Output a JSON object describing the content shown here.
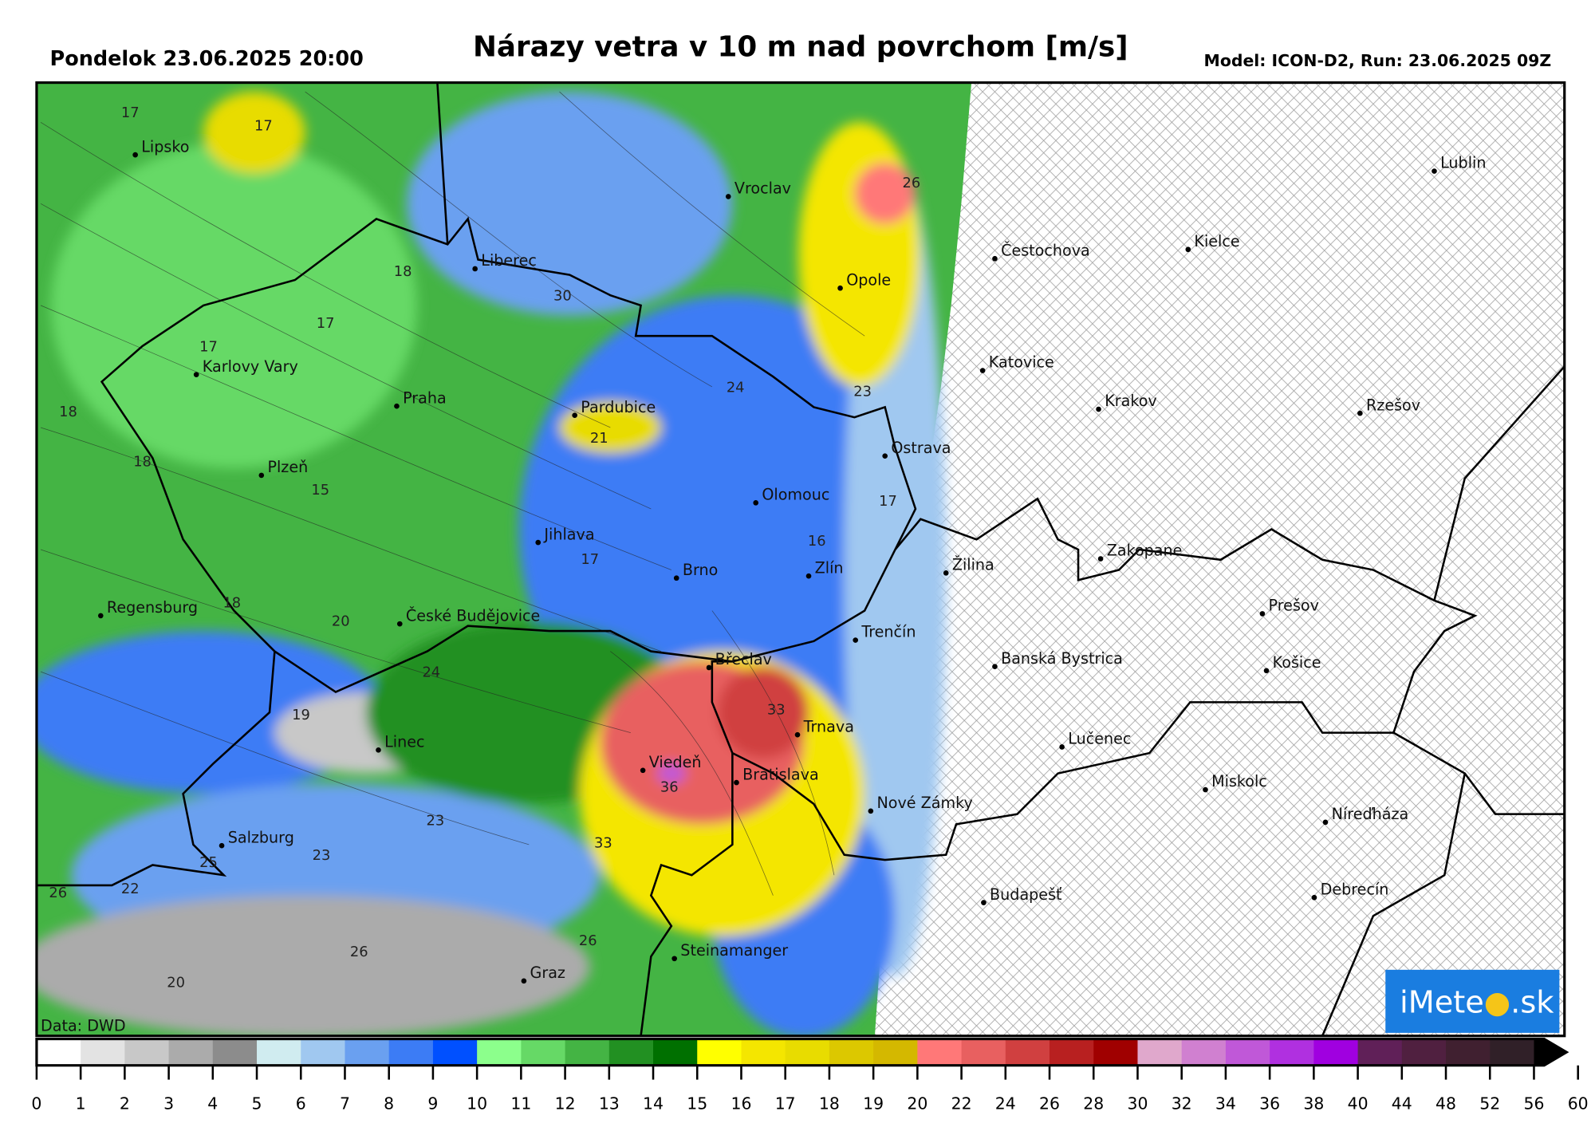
{
  "header": {
    "date_label": "Pondelok 23.06.2025 20:00",
    "title": "Nárazy vetra v 10 m nad povrchom [m/s]",
    "model_label": "Model: ICON-D2, Run: 23.06.2025 09Z"
  },
  "map": {
    "data_source": "Data: DWD",
    "logo_text": "iMeteo.sk",
    "logo_color": "#1a7de0",
    "no_data_pattern": "cross-hatch",
    "cities": [
      "Lipsko",
      "Vroclav",
      "Lublin",
      "Liberec",
      "Opole",
      "Čestochova",
      "Kielce",
      "Karlovy Vary",
      "Katovice",
      "Praha",
      "Pardubice",
      "Krakov",
      "Rzešov",
      "Ostrava",
      "Plzeň",
      "Olomouc",
      "Jihlava",
      "Zakopane",
      "Žilina",
      "Brno",
      "Zlín",
      "Regensburg",
      "České Budějovice",
      "Prešov",
      "Trenčín",
      "Břeclav",
      "Banská Bystrica",
      "Košice",
      "Trnava",
      "Linec",
      "Lučenec",
      "Viedeň",
      "Bratislava",
      "Miskolc",
      "Nové Zámky",
      "Níreďháza",
      "Salzburg",
      "Budapešť",
      "Debrecín",
      "Steinamanger",
      "Graz"
    ],
    "contour_labels": [
      "17",
      "17",
      "26",
      "18",
      "30",
      "17",
      "17",
      "24",
      "23",
      "18",
      "21",
      "18",
      "15",
      "17",
      "16",
      "17",
      "18",
      "20",
      "24",
      "19",
      "33",
      "36",
      "23",
      "23",
      "33",
      "25",
      "22",
      "26",
      "26",
      "26",
      "20"
    ]
  },
  "colorbar": {
    "unit": "m/s",
    "ticks": [
      "0",
      "1",
      "2",
      "3",
      "4",
      "5",
      "6",
      "7",
      "8",
      "9",
      "10",
      "11",
      "12",
      "13",
      "14",
      "15",
      "16",
      "17",
      "18",
      "19",
      "20",
      "22",
      "24",
      "26",
      "28",
      "30",
      "32",
      "34",
      "36",
      "38",
      "40",
      "44",
      "48",
      "52",
      "56",
      "60"
    ],
    "colors": [
      "#ffffff",
      "#e3e3e3",
      "#c8c8c8",
      "#ababab",
      "#8c8c8c",
      "#d0ecf0",
      "#a0c8f0",
      "#6aa0f0",
      "#3c7cf5",
      "#0050ff",
      "#8cff8c",
      "#66d966",
      "#44b444",
      "#229022",
      "#007000",
      "#ffff00",
      "#f4e600",
      "#e8dc00",
      "#dcc800",
      "#d4b800",
      "#ff7878",
      "#e86060",
      "#d04040",
      "#b82020",
      "#a00000",
      "#e0a8cc",
      "#d080d0",
      "#c058d8",
      "#b030e0",
      "#a000e0",
      "#602058",
      "#502040",
      "#402030",
      "#302028"
    ],
    "extend_color": "#000000"
  }
}
